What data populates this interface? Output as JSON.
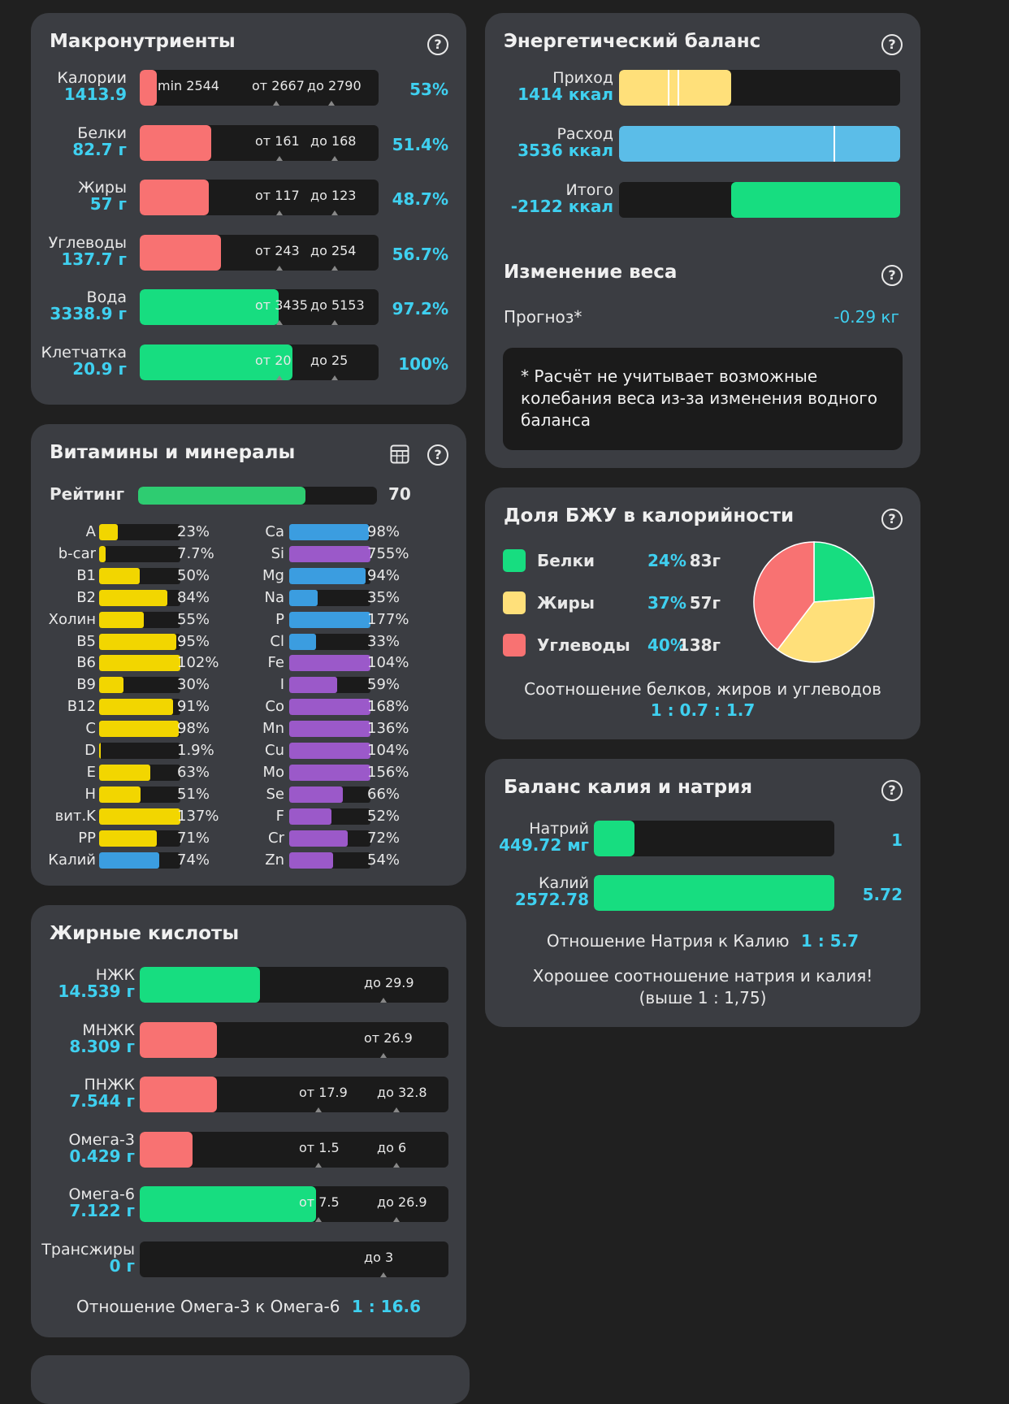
{
  "macro": {
    "title": "Макронутриенты",
    "rows": [
      {
        "name": "Калории",
        "value": "1413.9",
        "pct": "53%",
        "ticks": [
          "min 2544",
          "от 2667",
          "до 2790"
        ],
        "fill_pct": 7,
        "color": "#f87272"
      },
      {
        "name": "Белки",
        "value": "82.7 г",
        "pct": "51.4%",
        "ticks": [
          "от 161",
          "до 168"
        ],
        "fill_pct": 30,
        "color": "#f87272"
      },
      {
        "name": "Жиры",
        "value": "57 г",
        "pct": "48.7%",
        "ticks": [
          "от 117",
          "до 123"
        ],
        "fill_pct": 29,
        "color": "#f87272"
      },
      {
        "name": "Углеводы",
        "value": "137.7 г",
        "pct": "56.7%",
        "ticks": [
          "от 243",
          "до 254"
        ],
        "fill_pct": 34,
        "color": "#f87272"
      },
      {
        "name": "Вода",
        "value": "3338.9 г",
        "pct": "97.2%",
        "ticks": [
          "от 3435",
          "до 5153"
        ],
        "fill_pct": 58,
        "color": "#17dd80"
      },
      {
        "name": "Клетчатка",
        "value": "20.9 г",
        "pct": "100%",
        "ticks": [
          "от 20",
          "до 25"
        ],
        "fill_pct": 64,
        "color": "#17dd80"
      }
    ]
  },
  "vitamins": {
    "title": "Витамины и минералы",
    "rating_label": "Рейтинг",
    "rating_value": "70",
    "rating_fill": 70,
    "left": [
      {
        "name": "A",
        "pct": "23%",
        "fill": 23,
        "color": "#f2d600"
      },
      {
        "name": "b-car",
        "pct": "7.7%",
        "fill": 7.7,
        "color": "#f2d600"
      },
      {
        "name": "B1",
        "pct": "50%",
        "fill": 50,
        "color": "#f2d600"
      },
      {
        "name": "B2",
        "pct": "84%",
        "fill": 84,
        "color": "#f2d600"
      },
      {
        "name": "Холин",
        "pct": "55%",
        "fill": 55,
        "color": "#f2d600"
      },
      {
        "name": "B5",
        "pct": "95%",
        "fill": 95,
        "color": "#f2d600"
      },
      {
        "name": "B6",
        "pct": "102%",
        "fill": 100,
        "color": "#f2d600"
      },
      {
        "name": "B9",
        "pct": "30%",
        "fill": 30,
        "color": "#f2d600"
      },
      {
        "name": "B12",
        "pct": "91%",
        "fill": 91,
        "color": "#f2d600"
      },
      {
        "name": "C",
        "pct": "98%",
        "fill": 98,
        "color": "#f2d600"
      },
      {
        "name": "D",
        "pct": "1.9%",
        "fill": 1.9,
        "color": "#f2d600"
      },
      {
        "name": "E",
        "pct": "63%",
        "fill": 63,
        "color": "#f2d600"
      },
      {
        "name": "H",
        "pct": "51%",
        "fill": 51,
        "color": "#f2d600"
      },
      {
        "name": "вит.K",
        "pct": "137%",
        "fill": 100,
        "color": "#f2d600"
      },
      {
        "name": "PP",
        "pct": "71%",
        "fill": 71,
        "color": "#f2d600"
      },
      {
        "name": "Калий",
        "pct": "74%",
        "fill": 74,
        "color": "#3b9de0"
      }
    ],
    "right": [
      {
        "name": "Ca",
        "pct": "98%",
        "fill": 98,
        "color": "#3b9de0"
      },
      {
        "name": "Si",
        "pct": "755%",
        "fill": 100,
        "color": "#9b59c9"
      },
      {
        "name": "Mg",
        "pct": "94%",
        "fill": 94,
        "color": "#3b9de0"
      },
      {
        "name": "Na",
        "pct": "35%",
        "fill": 35,
        "color": "#3b9de0"
      },
      {
        "name": "P",
        "pct": "177%",
        "fill": 100,
        "color": "#3b9de0"
      },
      {
        "name": "Cl",
        "pct": "33%",
        "fill": 33,
        "color": "#3b9de0"
      },
      {
        "name": "Fe",
        "pct": "104%",
        "fill": 100,
        "color": "#9b59c9"
      },
      {
        "name": "I",
        "pct": "59%",
        "fill": 59,
        "color": "#9b59c9"
      },
      {
        "name": "Co",
        "pct": "168%",
        "fill": 100,
        "color": "#9b59c9"
      },
      {
        "name": "Mn",
        "pct": "136%",
        "fill": 100,
        "color": "#9b59c9"
      },
      {
        "name": "Cu",
        "pct": "104%",
        "fill": 100,
        "color": "#9b59c9"
      },
      {
        "name": "Mo",
        "pct": "156%",
        "fill": 100,
        "color": "#9b59c9"
      },
      {
        "name": "Se",
        "pct": "66%",
        "fill": 66,
        "color": "#9b59c9"
      },
      {
        "name": "F",
        "pct": "52%",
        "fill": 52,
        "color": "#9b59c9"
      },
      {
        "name": "Cr",
        "pct": "72%",
        "fill": 72,
        "color": "#9b59c9"
      },
      {
        "name": "Zn",
        "pct": "54%",
        "fill": 54,
        "color": "#9b59c9"
      }
    ]
  },
  "fatty": {
    "title": "Жирные кислоты",
    "rows": [
      {
        "name": "НЖК",
        "value": "14.539 г",
        "ticks": [
          "до 29.9"
        ],
        "fill_pct": 39,
        "color": "#17dd80"
      },
      {
        "name": "МНЖК",
        "value": "8.309 г",
        "ticks": [
          "от 26.9"
        ],
        "fill_pct": 25,
        "color": "#f87272"
      },
      {
        "name": "ПНЖК",
        "value": "7.544 г",
        "ticks": [
          "от 17.9",
          "до 32.8"
        ],
        "fill_pct": 25,
        "color": "#f87272"
      },
      {
        "name": "Омега-3",
        "value": "0.429 г",
        "ticks": [
          "от 1.5",
          "до 6"
        ],
        "fill_pct": 17,
        "color": "#f87272"
      },
      {
        "name": "Омега-6",
        "value": "7.122 г",
        "ticks": [
          "от 7.5",
          "до 26.9"
        ],
        "fill_pct": 57,
        "color": "#17dd80"
      },
      {
        "name": "Трансжиры",
        "value": "0 г",
        "ticks": [
          "до 3"
        ],
        "fill_pct": 0,
        "color": "#17dd80"
      }
    ],
    "ratio_label": "Отношение Омега-3 к Омега-6",
    "ratio_value": "1 : 16.6"
  },
  "energy": {
    "title": "Энергетический баланс",
    "rows": [
      {
        "name": "Приход",
        "value": "1414 ккал",
        "fill_pct": 40,
        "color": "#ffe07a"
      },
      {
        "name": "Расход",
        "value": "3536 ккал",
        "fill_pct": 100,
        "color": "#5bbde8"
      },
      {
        "name": "Итого",
        "value": "-2122 ккал",
        "fill_pct": 60,
        "color": "#17dd80"
      }
    ],
    "weight_title": "Изменение веса",
    "forecast_label": "Прогноз*",
    "forecast_value": "-0.29 кг",
    "note": "* Расчёт не учитывает возможные колебания веса из-за изменения водного баланса"
  },
  "bju": {
    "title": "Доля БЖУ в калорийности",
    "items": [
      {
        "name": "Белки",
        "pct": "24%",
        "grams": "83г",
        "color": "#17dd80",
        "share": 24
      },
      {
        "name": "Жиры",
        "pct": "37%",
        "grams": "57г",
        "color": "#ffe07a",
        "share": 37
      },
      {
        "name": "Углеводы",
        "pct": "40%",
        "grams": "138г",
        "color": "#f87272",
        "share": 40
      }
    ],
    "ratio_label": "Соотношение белков, жиров и углеводов",
    "ratio_value": "1 : 0.7 : 1.7"
  },
  "kna": {
    "title": "Баланс калия и натрия",
    "rows": [
      {
        "name": "Натрий",
        "value": "449.72 мг",
        "ratio": "1",
        "fill_pct": 17,
        "color": "#17dd80"
      },
      {
        "name": "Калий",
        "value": "2572.78",
        "ratio": "5.72",
        "fill_pct": 100,
        "color": "#17dd80"
      }
    ],
    "ratio_label": "Отношение Натрия к Калию",
    "ratio_value": "1 : 5.7",
    "note": "Хорошее соотношение натрия и калия! (выше 1 : 1,75)"
  },
  "help_glyph": "?"
}
